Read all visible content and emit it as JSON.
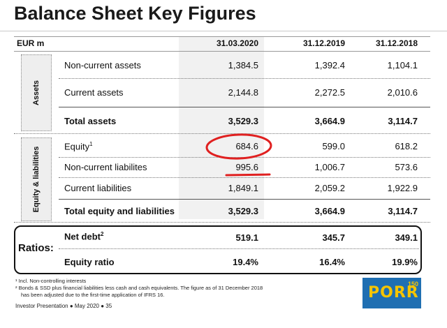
{
  "title": "Balance Sheet Key Figures",
  "table": {
    "unit_label": "EUR m",
    "columns": [
      "31.03.2020",
      "31.12.2019",
      "31.12.2018"
    ],
    "section_assets": "Assets",
    "section_equity": "Equity & liabilities",
    "rows": [
      {
        "label": "Non-current assets",
        "values": [
          "1,384.5",
          "1,392.4",
          "1,104.1"
        ]
      },
      {
        "label": "Current assets",
        "values": [
          "2,144.8",
          "2,272.5",
          "2,010.6"
        ]
      },
      {
        "label": "Total assets",
        "values": [
          "3,529.3",
          "3,664.9",
          "3,114.7"
        ]
      },
      {
        "label": "Equity",
        "sup": "1",
        "values": [
          "684.6",
          "599.0",
          "618.2"
        ]
      },
      {
        "label": "Non-current liabilites",
        "values": [
          "995.6",
          "1,006.7",
          "573.6"
        ]
      },
      {
        "label": "Current liabilities",
        "values": [
          "1,849.1",
          "2,059.2",
          "1,922.9"
        ]
      },
      {
        "label": "Total equity and liabilities",
        "values": [
          "3,529.3",
          "3,664.9",
          "3,114.7"
        ]
      }
    ]
  },
  "ratios": {
    "label": "Ratios:",
    "rows": [
      {
        "label": "Net debt",
        "sup": "2",
        "values": [
          "519.1",
          "345.7",
          "349.1"
        ]
      },
      {
        "label": "Equity ratio",
        "values": [
          "19.4%",
          "16.4%",
          "19.9%"
        ]
      }
    ]
  },
  "footnotes": {
    "note1": "¹ Incl. Non-controlling interests",
    "note2_line1": "² Bonds & SSD plus financial liabilities less cash and cash equivalents. The figure as of 31 December 2018",
    "note2_line2": "has been adjusted due to the first-time application of IFRS 16.",
    "presentation": "Investor Presentation ● May 2020 ● 35"
  },
  "logo": {
    "text": "PORR",
    "superscript": "150"
  },
  "colors": {
    "annotation_red": "#e02020",
    "logo_blue": "#1f6fb2",
    "logo_yellow": "#f5c400"
  }
}
